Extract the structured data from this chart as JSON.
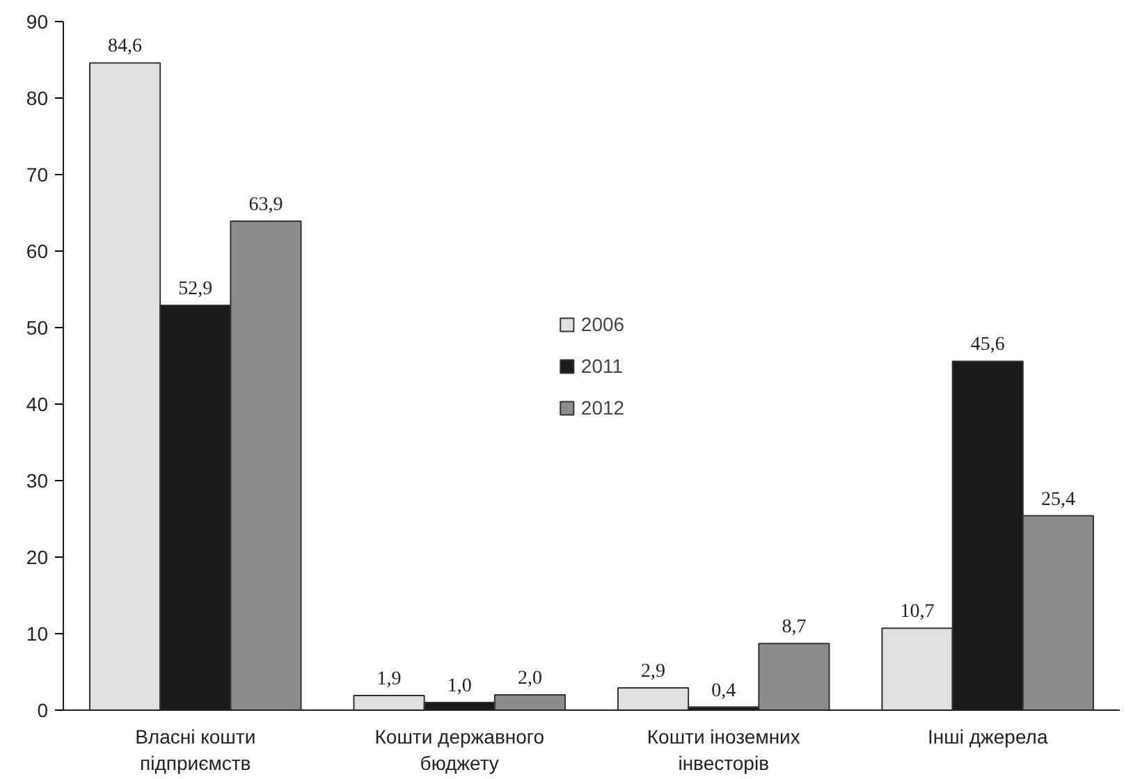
{
  "chart_data": {
    "type": "bar",
    "categories": [
      "Власні кошти\nпідприємств",
      "Кошти державного\nбюджету",
      "Кошти іноземних\nінвесторів",
      "Інші джерела"
    ],
    "series": [
      {
        "name": "2006",
        "color": "#e0e0e0",
        "values": [
          84.6,
          1.9,
          2.9,
          10.7
        ],
        "value_labels": [
          "84,6",
          "1,9",
          "2,9",
          "10,7"
        ]
      },
      {
        "name": "2011",
        "color": "#1a1a1a",
        "values": [
          52.9,
          1.0,
          0.4,
          45.6
        ],
        "value_labels": [
          "52,9",
          "1,0",
          "0,4",
          "45,6"
        ]
      },
      {
        "name": "2012",
        "color": "#8c8c8c",
        "values": [
          63.9,
          2.0,
          8.7,
          25.4
        ],
        "value_labels": [
          "63,9",
          "2,0",
          "8,7",
          "25,4"
        ]
      }
    ],
    "ylim": [
      0,
      90
    ],
    "yticks": [
      0,
      10,
      20,
      30,
      40,
      50,
      60,
      70,
      80,
      90
    ],
    "grid": false,
    "legend": "center"
  }
}
